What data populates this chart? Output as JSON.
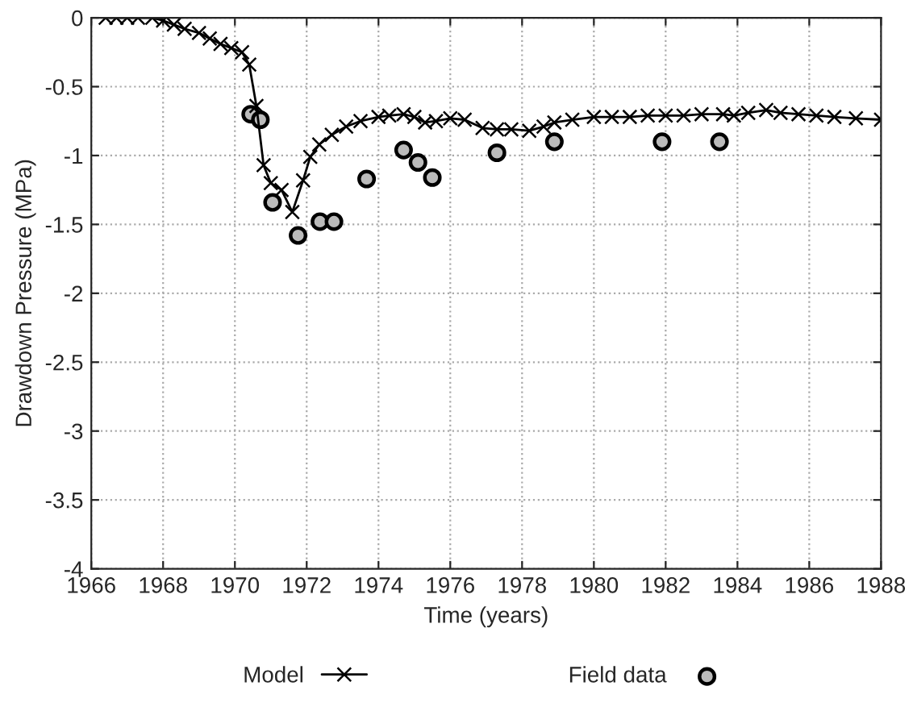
{
  "chart_data": {
    "type": "line",
    "xlabel": "Time (years)",
    "ylabel": "Drawdown Pressure (MPa)",
    "xlim": [
      1966,
      1988
    ],
    "xticks": [
      1966,
      1968,
      1970,
      1972,
      1974,
      1976,
      1978,
      1980,
      1982,
      1984,
      1986,
      1988
    ],
    "ylim": [
      -4,
      0
    ],
    "yticks": [
      -4,
      -3.5,
      -3,
      -2.5,
      -2,
      -1.5,
      -1,
      -0.5,
      0
    ],
    "grid": true,
    "legend": "bottom",
    "series": [
      {
        "name": "Model",
        "color": "#000000",
        "marker": "cross",
        "line_style": "solid",
        "x": [
          1966.4,
          1966.7,
          1967.0,
          1967.3,
          1967.7,
          1968.0,
          1968.3,
          1968.6,
          1969.0,
          1969.3,
          1969.6,
          1969.9,
          1970.2,
          1970.4,
          1970.6,
          1970.8,
          1971.0,
          1971.3,
          1971.6,
          1971.9,
          1972.1,
          1972.35,
          1972.7,
          1973.1,
          1973.5,
          1974.0,
          1974.3,
          1974.7,
          1975.0,
          1975.3,
          1975.6,
          1976.0,
          1976.4,
          1976.9,
          1977.3,
          1977.7,
          1978.2,
          1978.6,
          1978.9,
          1979.4,
          1980.0,
          1980.5,
          1981.0,
          1981.5,
          1982.0,
          1982.5,
          1983.0,
          1983.6,
          1983.9,
          1984.3,
          1984.8,
          1985.2,
          1985.7,
          1986.2,
          1986.7,
          1987.3,
          1988.0
        ],
        "values": [
          0,
          0,
          0,
          0,
          0,
          -0.02,
          -0.05,
          -0.08,
          -0.11,
          -0.15,
          -0.19,
          -0.22,
          -0.25,
          -0.34,
          -0.64,
          -1.07,
          -1.2,
          -1.25,
          -1.41,
          -1.18,
          -1.01,
          -0.92,
          -0.85,
          -0.79,
          -0.75,
          -0.72,
          -0.71,
          -0.7,
          -0.72,
          -0.76,
          -0.75,
          -0.73,
          -0.74,
          -0.8,
          -0.81,
          -0.81,
          -0.82,
          -0.79,
          -0.76,
          -0.74,
          -0.72,
          -0.72,
          -0.72,
          -0.71,
          -0.71,
          -0.71,
          -0.7,
          -0.7,
          -0.71,
          -0.69,
          -0.67,
          -0.69,
          -0.7,
          -0.71,
          -0.72,
          -0.73,
          -0.74
        ]
      },
      {
        "name": "Field data",
        "type": "scatter",
        "color": "#000000",
        "marker": "circle",
        "x": [
          1970.44,
          1970.71,
          1971.05,
          1971.76,
          1972.37,
          1972.76,
          1973.67,
          1974.7,
          1975.1,
          1975.5,
          1977.3,
          1978.9,
          1981.9,
          1983.5
        ],
        "values": [
          -0.7,
          -0.74,
          -1.34,
          -1.58,
          -1.48,
          -1.48,
          -1.17,
          -0.96,
          -1.05,
          -1.16,
          -0.98,
          -0.9,
          -0.9,
          -0.9
        ]
      }
    ]
  }
}
